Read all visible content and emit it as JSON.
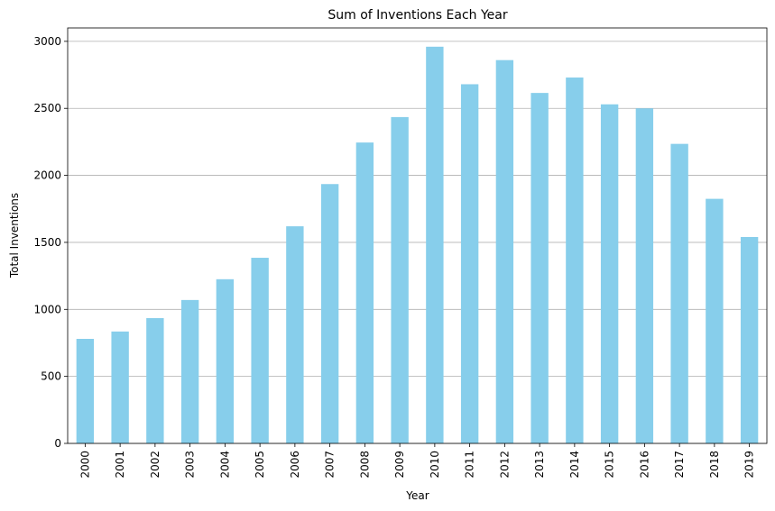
{
  "chart_data": {
    "type": "bar",
    "title": "Sum of Inventions Each Year",
    "xlabel": "Year",
    "ylabel": "Total Inventions",
    "categories": [
      "2000",
      "2001",
      "2002",
      "2003",
      "2004",
      "2005",
      "2006",
      "2007",
      "2008",
      "2009",
      "2010",
      "2011",
      "2012",
      "2013",
      "2014",
      "2015",
      "2016",
      "2017",
      "2018",
      "2019"
    ],
    "values": [
      780,
      835,
      935,
      1070,
      1225,
      1385,
      1620,
      1935,
      2245,
      2435,
      2960,
      2680,
      2860,
      2615,
      2730,
      2530,
      2500,
      2235,
      1825,
      1540
    ],
    "ylim": [
      0,
      3100
    ],
    "yticks": [
      0,
      500,
      1000,
      1500,
      2000,
      2500,
      3000
    ],
    "grid": "y",
    "bar_color": "#87ceeb"
  }
}
